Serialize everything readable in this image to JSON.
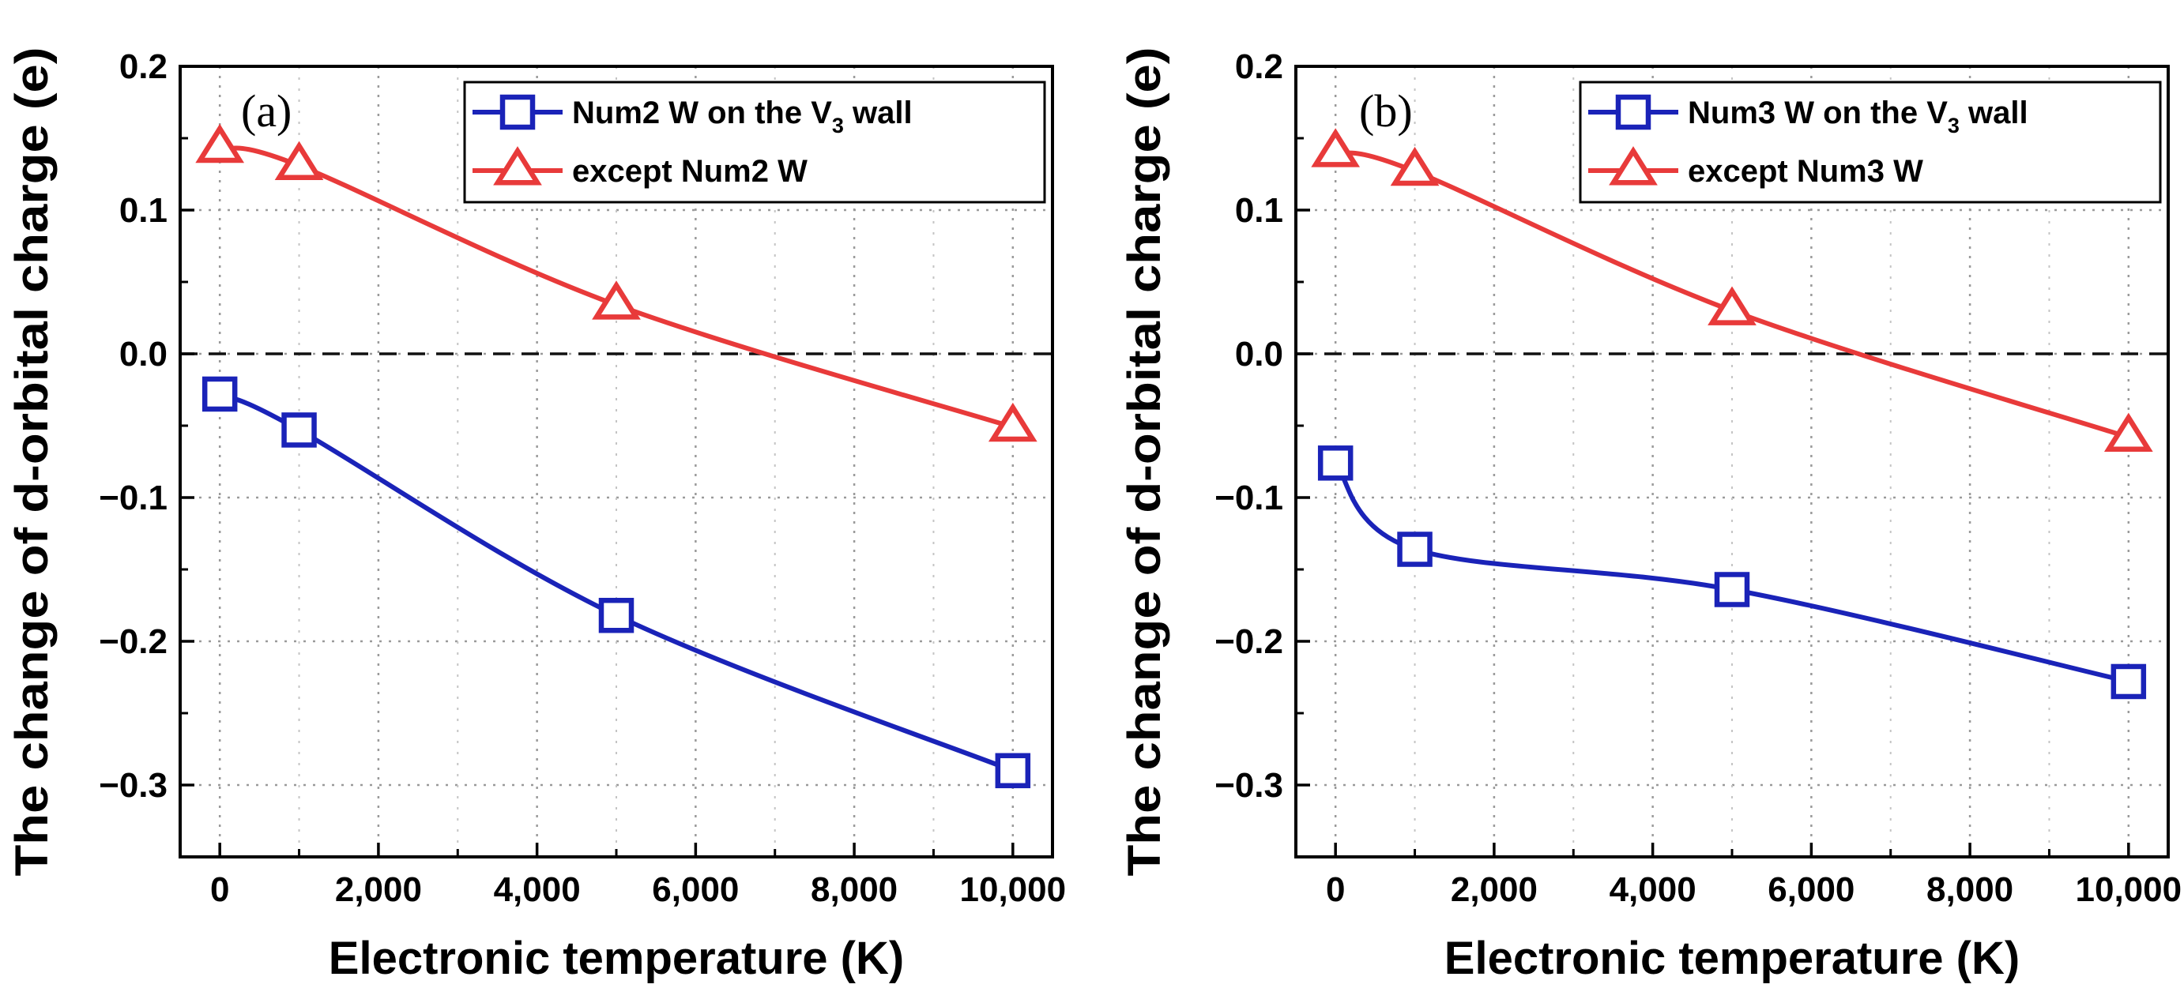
{
  "chart_data": [
    {
      "type": "line",
      "panel_label": "(a)",
      "xlabel": "Electronic temperature (K)",
      "ylabel": "The change of d-orbital charge (e)",
      "xlim": [
        -500,
        10500
      ],
      "ylim": [
        -0.35,
        0.2
      ],
      "xticks": [
        0,
        2000,
        4000,
        6000,
        8000,
        10000
      ],
      "xtick_labels": [
        "0",
        "2,000",
        "4,000",
        "6,000",
        "8,000",
        "10,000"
      ],
      "yticks": [
        0.2,
        0.1,
        0.0,
        -0.1,
        -0.2,
        -0.3
      ],
      "ytick_labels": [
        "0.2",
        "0.1",
        "0.0",
        "−0.1",
        "−0.2",
        "−0.3"
      ],
      "grid": true,
      "reference_line": 0.0,
      "legend_position": "top-right",
      "series": [
        {
          "name": "Num2 W on the V3 wall",
          "legend_main": "Num2 W on the V",
          "legend_sub": "3",
          "legend_tail": " wall",
          "marker": "square",
          "color": "#1a23b8",
          "x": [
            0,
            1000,
            5000,
            10000
          ],
          "values": [
            -0.028,
            -0.053,
            -0.182,
            -0.29
          ]
        },
        {
          "name": "except Num2 W",
          "legend_main": "except Num2 W",
          "legend_sub": "",
          "legend_tail": "",
          "marker": "triangle",
          "color": "#e83a3a",
          "x": [
            0,
            1000,
            5000,
            10000
          ],
          "values": [
            0.143,
            0.131,
            0.034,
            -0.051
          ]
        }
      ]
    },
    {
      "type": "line",
      "panel_label": "(b)",
      "xlabel": "Electronic temperature (K)",
      "ylabel": "The change of d-orbital charge (e)",
      "xlim": [
        -500,
        10500
      ],
      "ylim": [
        -0.35,
        0.2
      ],
      "xticks": [
        0,
        2000,
        4000,
        6000,
        8000,
        10000
      ],
      "xtick_labels": [
        "0",
        "2,000",
        "4,000",
        "6,000",
        "8,000",
        "10,000"
      ],
      "yticks": [
        0.2,
        0.1,
        0.0,
        -0.1,
        -0.2,
        -0.3
      ],
      "ytick_labels": [
        "0.2",
        "0.1",
        "0.0",
        "−0.1",
        "−0.2",
        "−0.3"
      ],
      "grid": true,
      "reference_line": 0.0,
      "legend_position": "top-right",
      "series": [
        {
          "name": "Num3 W on the V3 wall",
          "legend_main": "Num3 W on the V",
          "legend_sub": "3",
          "legend_tail": " wall",
          "marker": "square",
          "color": "#1a23b8",
          "x": [
            0,
            1000,
            5000,
            10000
          ],
          "values": [
            -0.076,
            -0.136,
            -0.164,
            -0.228
          ]
        },
        {
          "name": "except Num3 W",
          "legend_main": "except Num3 W",
          "legend_sub": "",
          "legend_tail": "",
          "marker": "triangle",
          "color": "#e83a3a",
          "x": [
            0,
            1000,
            5000,
            10000
          ],
          "values": [
            0.14,
            0.127,
            0.03,
            -0.058
          ]
        }
      ]
    }
  ]
}
